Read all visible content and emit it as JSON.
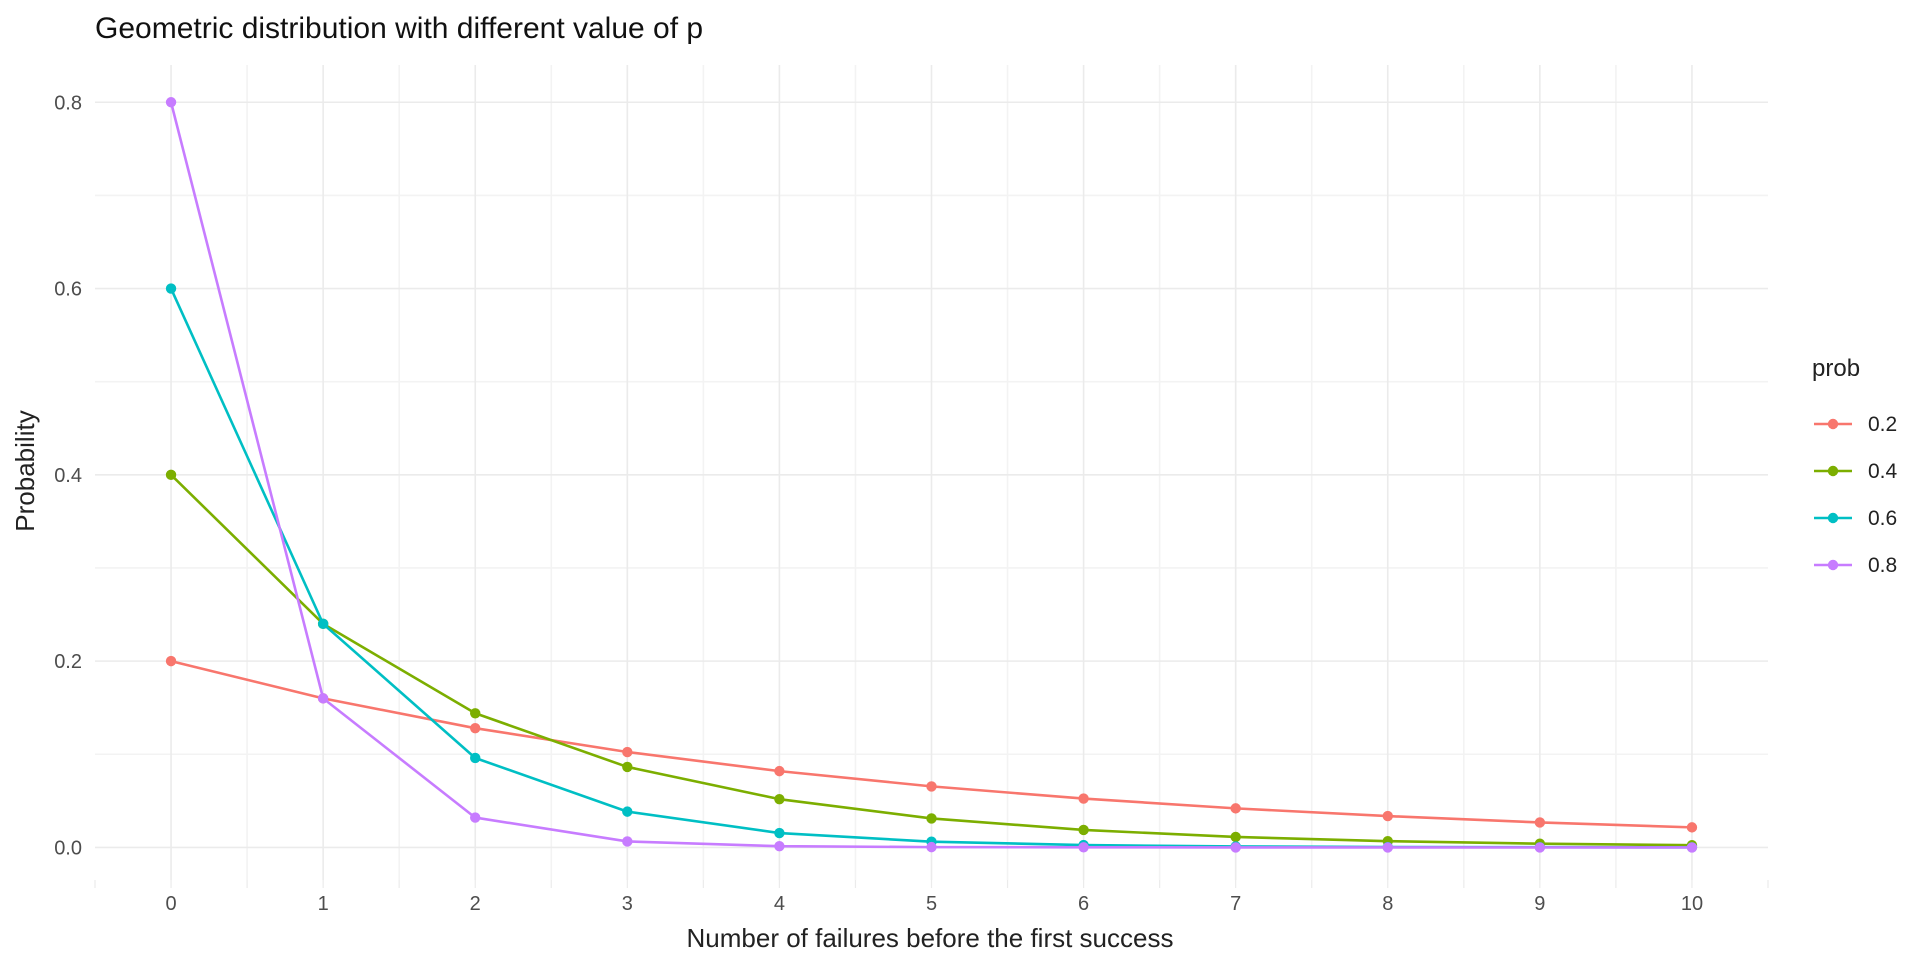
{
  "chart_data": {
    "type": "line",
    "title": "Geometric distribution with different value of p",
    "xlabel": "Number of failures before the first success",
    "ylabel": "Probability",
    "x": [
      0,
      1,
      2,
      3,
      4,
      5,
      6,
      7,
      8,
      9,
      10
    ],
    "xlim": [
      -0.5,
      10.5
    ],
    "ylim": [
      -0.035,
      0.84
    ],
    "x_ticks": [
      0,
      1,
      2,
      3,
      4,
      5,
      6,
      7,
      8,
      9,
      10
    ],
    "x_tick_labels": [
      "0",
      "1",
      "2",
      "3",
      "4",
      "5",
      "6",
      "7",
      "8",
      "9",
      "10"
    ],
    "y_ticks": [
      0.0,
      0.2,
      0.4,
      0.6,
      0.8
    ],
    "y_tick_labels": [
      "0.0",
      "0.2",
      "0.4",
      "0.6",
      "0.8"
    ],
    "grid": true,
    "legend": {
      "title": "prob",
      "placement": "right"
    },
    "series": [
      {
        "name": "0.2",
        "color": "#F8766D",
        "values": [
          0.2,
          0.16,
          0.128,
          0.1024,
          0.0819,
          0.0655,
          0.0524,
          0.0419,
          0.0336,
          0.0268,
          0.0215
        ]
      },
      {
        "name": "0.4",
        "color": "#7CAE00",
        "values": [
          0.4,
          0.24,
          0.144,
          0.0864,
          0.0518,
          0.0311,
          0.0187,
          0.0112,
          0.0067,
          0.004,
          0.0024
        ]
      },
      {
        "name": "0.6",
        "color": "#00BFC4",
        "values": [
          0.6,
          0.24,
          0.096,
          0.0384,
          0.0154,
          0.0061,
          0.0025,
          0.001,
          0.0004,
          0.0002,
          0.0001
        ]
      },
      {
        "name": "0.8",
        "color": "#C77CFF",
        "values": [
          0.8,
          0.16,
          0.032,
          0.0064,
          0.0013,
          0.0003,
          0.0001,
          0.0,
          0.0,
          0.0,
          0.0
        ]
      }
    ]
  }
}
